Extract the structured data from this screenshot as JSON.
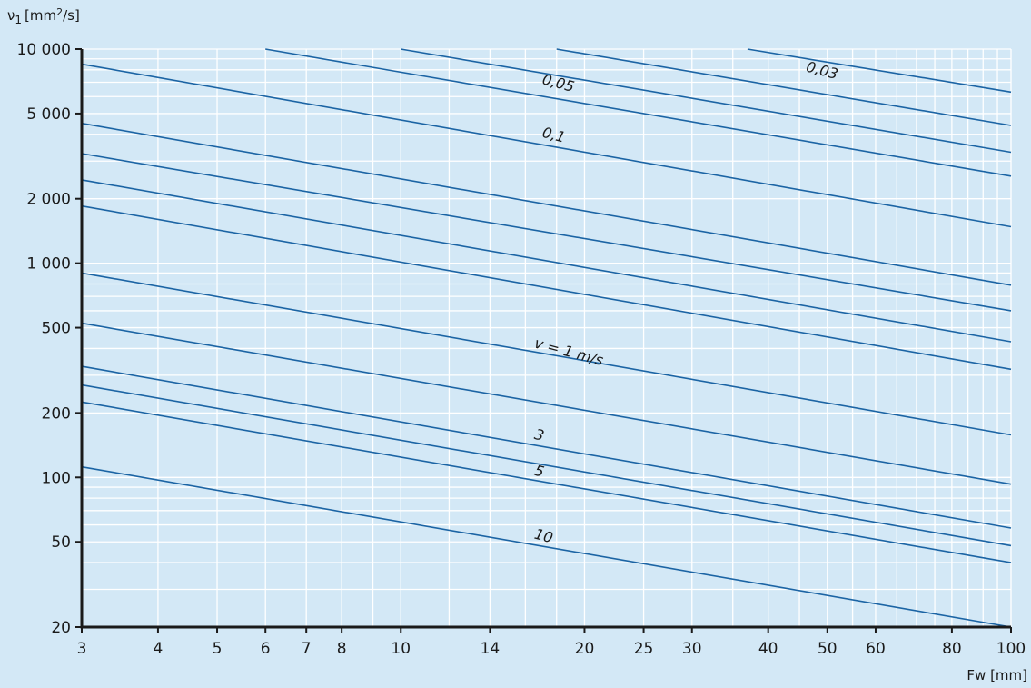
{
  "chart_data": {
    "type": "line",
    "title": "",
    "xlabel": "Fw [mm]",
    "ylabel_prefix": "ν",
    "ylabel_sub": "1",
    "ylabel_unit": "[mm",
    "ylabel_sup": "2",
    "ylabel_tail": "/s]",
    "x_scale": "log",
    "y_scale": "log",
    "xlim": [
      3,
      100
    ],
    "ylim": [
      20,
      10000
    ],
    "x_ticks": [
      3,
      4,
      5,
      6,
      7,
      8,
      10,
      14,
      20,
      25,
      30,
      40,
      50,
      60,
      80,
      100
    ],
    "x_tick_labels": [
      "3",
      "4",
      "5",
      "6",
      "7",
      "8",
      "10",
      "14",
      "20",
      "25",
      "30",
      "40",
      "50",
      "60",
      "80",
      "100"
    ],
    "y_ticks": [
      20,
      50,
      100,
      200,
      500,
      1000,
      2000,
      5000,
      10000
    ],
    "y_tick_labels": [
      "20",
      "50",
      "100",
      "200",
      "500",
      "1 000",
      "2 000",
      "5 000",
      "10 000"
    ],
    "grid": true,
    "line_color": "#1b64a4",
    "axis_color": "#1a1a1a",
    "grid_color": "#ffffff",
    "series": [
      {
        "x": [
          37,
          100
        ],
        "y": [
          10000,
          6300
        ]
      },
      {
        "x": [
          18,
          100
        ],
        "y": [
          10000,
          4400
        ]
      },
      {
        "x": [
          10,
          100
        ],
        "y": [
          10000,
          3300
        ]
      },
      {
        "x": [
          6,
          100
        ],
        "y": [
          10000,
          2550
        ]
      },
      {
        "x": [
          3,
          100
        ],
        "y": [
          8500,
          1480
        ]
      },
      {
        "x": [
          3,
          100
        ],
        "y": [
          4500,
          790
        ]
      },
      {
        "x": [
          3,
          100
        ],
        "y": [
          3250,
          600
        ]
      },
      {
        "x": [
          3,
          100
        ],
        "y": [
          2450,
          430
        ]
      },
      {
        "x": [
          3,
          100
        ],
        "y": [
          1850,
          320
        ]
      },
      {
        "x": [
          3,
          100
        ],
        "y": [
          900,
          158
        ]
      },
      {
        "x": [
          3,
          100
        ],
        "y": [
          525,
          93
        ]
      },
      {
        "x": [
          3,
          100
        ],
        "y": [
          330,
          58
        ]
      },
      {
        "x": [
          3,
          100
        ],
        "y": [
          270,
          48
        ]
      },
      {
        "x": [
          3,
          100
        ],
        "y": [
          225,
          40
        ]
      },
      {
        "x": [
          3,
          100
        ],
        "y": [
          112,
          20
        ]
      }
    ],
    "annotations": [
      {
        "text": "0,03",
        "x": 46,
        "y": 7900
      },
      {
        "text": "0,05",
        "x": 17,
        "y": 6900
      },
      {
        "text": "0,1",
        "x": 17,
        "y": 3900
      },
      {
        "text": "v = 1 m/s",
        "x": 16.5,
        "y": 405
      },
      {
        "text": "3",
        "x": 16.5,
        "y": 152
      },
      {
        "text": "5",
        "x": 16.5,
        "y": 103
      },
      {
        "text": "10",
        "x": 16.5,
        "y": 52
      }
    ]
  }
}
